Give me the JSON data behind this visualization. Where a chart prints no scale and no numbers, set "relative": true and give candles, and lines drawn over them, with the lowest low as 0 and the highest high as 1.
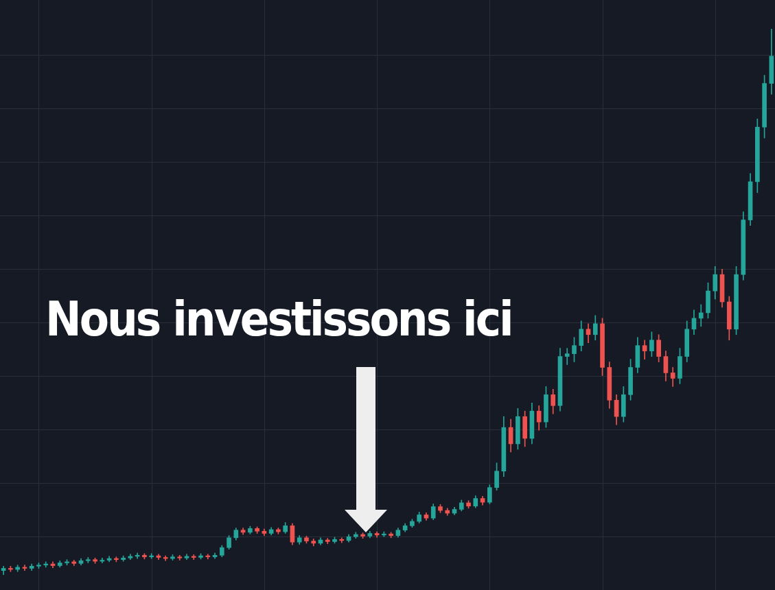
{
  "chart_data": {
    "type": "candlestick",
    "relative": true,
    "grid": true,
    "annotations": [
      "Nous investissons ici"
    ],
    "categories": [
      null,
      null,
      null,
      null,
      null,
      null,
      null,
      null,
      null,
      null,
      null,
      null,
      null,
      null,
      null,
      null,
      null,
      null,
      null,
      null,
      null,
      null,
      null,
      null,
      null,
      null,
      null,
      null,
      null,
      null,
      null,
      null,
      null,
      null,
      null,
      null,
      null,
      null,
      null,
      null,
      null,
      null,
      null,
      null,
      null,
      null,
      null,
      null,
      null,
      null,
      null,
      null,
      null,
      null,
      null,
      null,
      null,
      null,
      null,
      null,
      null,
      null,
      null,
      null,
      null,
      null,
      null,
      null,
      null,
      null,
      null,
      null,
      null,
      null,
      null,
      null,
      null,
      null,
      null,
      null,
      null,
      null,
      null,
      null,
      null,
      null,
      null,
      null,
      null,
      null,
      null,
      null,
      null,
      null,
      null,
      null,
      null,
      null,
      null,
      null,
      null,
      null,
      null,
      null,
      null,
      null,
      null,
      null,
      null,
      null
    ],
    "ohlc": [
      [
        0.008,
        0.016,
        0,
        0.012
      ],
      [
        0.012,
        0.016,
        0.006,
        0.01
      ],
      [
        0.01,
        0.018,
        0.006,
        0.014
      ],
      [
        0.014,
        0.018,
        0.008,
        0.012
      ],
      [
        0.012,
        0.02,
        0.008,
        0.016
      ],
      [
        0.016,
        0.022,
        0.012,
        0.018
      ],
      [
        0.018,
        0.024,
        0.014,
        0.02
      ],
      [
        0.02,
        0.024,
        0.013,
        0.017
      ],
      [
        0.017,
        0.026,
        0.014,
        0.022
      ],
      [
        0.022,
        0.028,
        0.018,
        0.024
      ],
      [
        0.024,
        0.027,
        0.017,
        0.021
      ],
      [
        0.021,
        0.03,
        0.018,
        0.026
      ],
      [
        0.026,
        0.032,
        0.022,
        0.028
      ],
      [
        0.028,
        0.031,
        0.021,
        0.025
      ],
      [
        0.025,
        0.031,
        0.022,
        0.027
      ],
      [
        0.027,
        0.034,
        0.024,
        0.03
      ],
      [
        0.03,
        0.033,
        0.024,
        0.028
      ],
      [
        0.028,
        0.035,
        0.025,
        0.031
      ],
      [
        0.031,
        0.038,
        0.028,
        0.034
      ],
      [
        0.034,
        0.04,
        0.03,
        0.036
      ],
      [
        0.036,
        0.039,
        0.029,
        0.033
      ],
      [
        0.033,
        0.039,
        0.03,
        0.035
      ],
      [
        0.035,
        0.038,
        0.028,
        0.032
      ],
      [
        0.032,
        0.035,
        0.026,
        0.03
      ],
      [
        0.03,
        0.037,
        0.027,
        0.033
      ],
      [
        0.033,
        0.036,
        0.027,
        0.031
      ],
      [
        0.031,
        0.038,
        0.028,
        0.034
      ],
      [
        0.034,
        0.037,
        0.028,
        0.032
      ],
      [
        0.032,
        0.039,
        0.029,
        0.035
      ],
      [
        0.035,
        0.038,
        0.029,
        0.033
      ],
      [
        0.033,
        0.04,
        0.03,
        0.036
      ],
      [
        0.036,
        0.054,
        0.033,
        0.05
      ],
      [
        0.05,
        0.072,
        0.047,
        0.068
      ],
      [
        0.068,
        0.086,
        0.064,
        0.082
      ],
      [
        0.082,
        0.086,
        0.074,
        0.078
      ],
      [
        0.078,
        0.089,
        0.075,
        0.085
      ],
      [
        0.085,
        0.088,
        0.076,
        0.08
      ],
      [
        0.08,
        0.084,
        0.072,
        0.076
      ],
      [
        0.076,
        0.087,
        0.073,
        0.083
      ],
      [
        0.083,
        0.086,
        0.075,
        0.079
      ],
      [
        0.079,
        0.096,
        0.076,
        0.09
      ],
      [
        0.09,
        0.094,
        0.055,
        0.06
      ],
      [
        0.06,
        0.072,
        0.056,
        0.068
      ],
      [
        0.068,
        0.071,
        0.058,
        0.062
      ],
      [
        0.062,
        0.066,
        0.053,
        0.058
      ],
      [
        0.058,
        0.068,
        0.055,
        0.064
      ],
      [
        0.064,
        0.067,
        0.057,
        0.061
      ],
      [
        0.061,
        0.069,
        0.058,
        0.065
      ],
      [
        0.065,
        0.068,
        0.059,
        0.063
      ],
      [
        0.063,
        0.074,
        0.06,
        0.07
      ],
      [
        0.07,
        0.078,
        0.067,
        0.074
      ],
      [
        0.074,
        0.077,
        0.067,
        0.071
      ],
      [
        0.071,
        0.08,
        0.068,
        0.076
      ],
      [
        0.076,
        0.079,
        0.069,
        0.073
      ],
      [
        0.073,
        0.079,
        0.07,
        0.075
      ],
      [
        0.075,
        0.078,
        0.068,
        0.072
      ],
      [
        0.072,
        0.086,
        0.069,
        0.082
      ],
      [
        0.082,
        0.094,
        0.079,
        0.09
      ],
      [
        0.09,
        0.102,
        0.087,
        0.098
      ],
      [
        0.098,
        0.115,
        0.095,
        0.11
      ],
      [
        0.11,
        0.114,
        0.1,
        0.104
      ],
      [
        0.104,
        0.13,
        0.101,
        0.125
      ],
      [
        0.125,
        0.129,
        0.114,
        0.118
      ],
      [
        0.118,
        0.122,
        0.109,
        0.113
      ],
      [
        0.113,
        0.124,
        0.11,
        0.12
      ],
      [
        0.12,
        0.137,
        0.117,
        0.132
      ],
      [
        0.132,
        0.136,
        0.122,
        0.126
      ],
      [
        0.126,
        0.145,
        0.123,
        0.14
      ],
      [
        0.14,
        0.144,
        0.128,
        0.133
      ],
      [
        0.133,
        0.165,
        0.13,
        0.16
      ],
      [
        0.16,
        0.205,
        0.155,
        0.19
      ],
      [
        0.19,
        0.29,
        0.18,
        0.27
      ],
      [
        0.27,
        0.285,
        0.225,
        0.24
      ],
      [
        0.24,
        0.305,
        0.23,
        0.29
      ],
      [
        0.29,
        0.3,
        0.235,
        0.25
      ],
      [
        0.25,
        0.315,
        0.24,
        0.3
      ],
      [
        0.3,
        0.31,
        0.265,
        0.28
      ],
      [
        0.28,
        0.345,
        0.27,
        0.33
      ],
      [
        0.33,
        0.34,
        0.295,
        0.31
      ],
      [
        0.31,
        0.415,
        0.3,
        0.4
      ],
      [
        0.4,
        0.415,
        0.385,
        0.405
      ],
      [
        0.405,
        0.435,
        0.39,
        0.42
      ],
      [
        0.42,
        0.465,
        0.41,
        0.45
      ],
      [
        0.45,
        0.46,
        0.425,
        0.44
      ],
      [
        0.44,
        0.475,
        0.43,
        0.46
      ],
      [
        0.46,
        0.47,
        0.365,
        0.38
      ],
      [
        0.38,
        0.39,
        0.305,
        0.32
      ],
      [
        0.32,
        0.33,
        0.275,
        0.29
      ],
      [
        0.29,
        0.345,
        0.28,
        0.33
      ],
      [
        0.33,
        0.395,
        0.32,
        0.38
      ],
      [
        0.38,
        0.435,
        0.37,
        0.42
      ],
      [
        0.42,
        0.43,
        0.395,
        0.41
      ],
      [
        0.41,
        0.445,
        0.4,
        0.43
      ],
      [
        0.43,
        0.44,
        0.39,
        0.4
      ],
      [
        0.4,
        0.41,
        0.355,
        0.37
      ],
      [
        0.37,
        0.38,
        0.345,
        0.36
      ],
      [
        0.36,
        0.415,
        0.35,
        0.4
      ],
      [
        0.4,
        0.465,
        0.39,
        0.45
      ],
      [
        0.45,
        0.485,
        0.44,
        0.47
      ],
      [
        0.47,
        0.495,
        0.455,
        0.48
      ],
      [
        0.48,
        0.535,
        0.47,
        0.52
      ],
      [
        0.52,
        0.565,
        0.505,
        0.55
      ],
      [
        0.55,
        0.56,
        0.49,
        0.5
      ],
      [
        0.5,
        0.51,
        0.43,
        0.45
      ],
      [
        0.45,
        0.565,
        0.44,
        0.55
      ],
      [
        0.55,
        0.665,
        0.54,
        0.65
      ],
      [
        0.65,
        0.735,
        0.64,
        0.72
      ],
      [
        0.72,
        0.835,
        0.7,
        0.82
      ],
      [
        0.82,
        0.915,
        0.8,
        0.9
      ],
      [
        0.9,
        1,
        0.88,
        0.95
      ]
    ],
    "colors": [
      "#26a69a",
      "#ef5350",
      "#26a69a",
      "#ef5350",
      "#26a69a",
      "#26a69a",
      "#26a69a",
      "#ef5350",
      "#26a69a",
      "#26a69a",
      "#ef5350",
      "#26a69a",
      "#26a69a",
      "#ef5350",
      "#26a69a",
      "#26a69a",
      "#ef5350",
      "#26a69a",
      "#26a69a",
      "#26a69a",
      "#ef5350",
      "#26a69a",
      "#ef5350",
      "#ef5350",
      "#26a69a",
      "#ef5350",
      "#26a69a",
      "#ef5350",
      "#26a69a",
      "#ef5350",
      "#26a69a",
      "#26a69a",
      "#26a69a",
      "#26a69a",
      "#ef5350",
      "#26a69a",
      "#ef5350",
      "#ef5350",
      "#26a69a",
      "#ef5350",
      "#26a69a",
      "#ef5350",
      "#26a69a",
      "#ef5350",
      "#ef5350",
      "#26a69a",
      "#ef5350",
      "#26a69a",
      "#ef5350",
      "#26a69a",
      "#26a69a",
      "#ef5350",
      "#26a69a",
      "#ef5350",
      "#26a69a",
      "#ef5350",
      "#26a69a",
      "#26a69a",
      "#26a69a",
      "#26a69a",
      "#ef5350",
      "#26a69a",
      "#ef5350",
      "#ef5350",
      "#26a69a",
      "#26a69a",
      "#ef5350",
      "#26a69a",
      "#ef5350",
      "#26a69a",
      "#26a69a",
      "#26a69a",
      "#ef5350",
      "#26a69a",
      "#ef5350",
      "#26a69a",
      "#ef5350",
      "#26a69a",
      "#ef5350",
      "#26a69a",
      "#26a69a",
      "#26a69a",
      "#26a69a",
      "#ef5350",
      "#26a69a",
      "#ef5350",
      "#ef5350",
      "#ef5350",
      "#26a69a",
      "#26a69a",
      "#26a69a",
      "#ef5350",
      "#26a69a",
      "#ef5350",
      "#ef5350",
      "#ef5350",
      "#26a69a",
      "#26a69a",
      "#26a69a",
      "#26a69a",
      "#26a69a",
      "#26a69a",
      "#ef5350",
      "#ef5350",
      "#26a69a",
      "#26a69a",
      "#26a69a",
      "#26a69a",
      "#26a69a",
      "#26a69a"
    ]
  }
}
